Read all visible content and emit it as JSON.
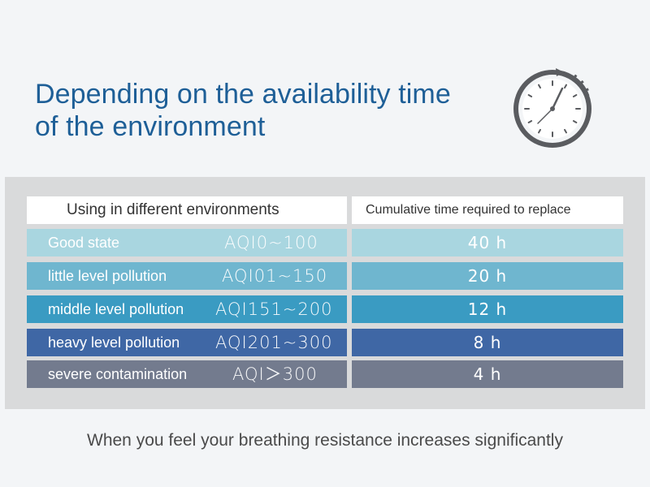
{
  "title": {
    "line1": "Depending on the availability time",
    "line2": "of the environment"
  },
  "clock_icon": "stopwatch-clock-icon",
  "table": {
    "header_left": "Using in different environments",
    "header_right": "Cumulative time required to replace",
    "rows": [
      {
        "label": "Good state",
        "aqi": "AQI0~100",
        "time": "40 h",
        "color": "#a9d6e0"
      },
      {
        "label": "little level pollution",
        "aqi": "AQI01~150",
        "time": "20 h",
        "color": "#6fb6cf"
      },
      {
        "label": "middle level pollution",
        "aqi": "AQI151~200",
        "time": "12 h",
        "color": "#3a9bc2"
      },
      {
        "label": "heavy level pollution",
        "aqi": "AQI201~300",
        "time": "8 h",
        "color": "#3f67a5"
      },
      {
        "label": "severe contamination",
        "aqi": "AQI＞300",
        "time": "4 h",
        "color": "#737b8e"
      }
    ]
  },
  "footer": "When you feel your breathing resistance increases significantly"
}
